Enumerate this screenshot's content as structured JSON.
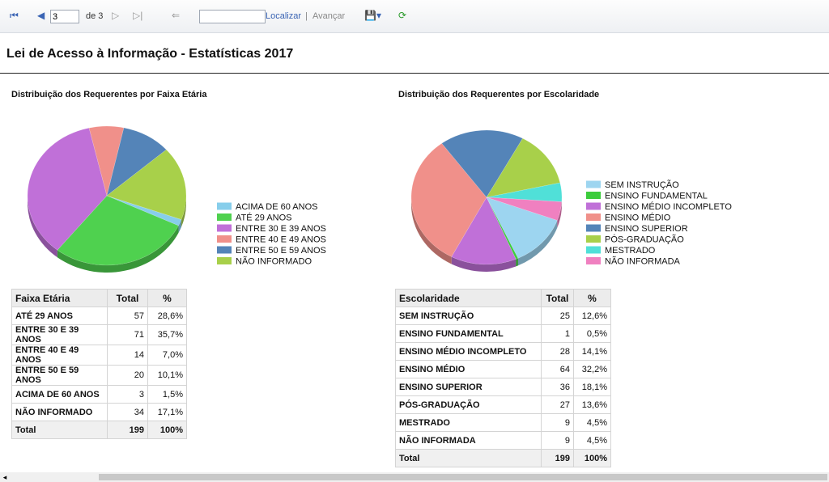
{
  "toolbar": {
    "page_input": "3",
    "page_count": "de 3",
    "find": "Localizar",
    "next": "Avançar"
  },
  "title": "Lei de Acesso à Informação - Estatísticas 2017",
  "chart_data": [
    {
      "type": "pie",
      "title": "Distribuição dos Requerentes por Faixa Etária",
      "categories": [
        "ACIMA DE 60 ANOS",
        "ATÉ 29 ANOS",
        "ENTRE 30 E 39 ANOS",
        "ENTRE 40 E 49 ANOS",
        "ENTRE 50 E 59 ANOS",
        "NÃO INFORMADO"
      ],
      "values": [
        3,
        57,
        71,
        14,
        20,
        34
      ],
      "colors": [
        "#87ceeb",
        "#4fd14f",
        "#c070d8",
        "#f0908a",
        "#5484b8",
        "#a8d04a"
      ]
    },
    {
      "type": "pie",
      "title": "Distribuição dos Requerentes por Escolaridade",
      "categories": [
        "SEM INSTRUÇÃO",
        "ENSINO FUNDAMENTAL",
        "ENSINO MÉDIO INCOMPLETO",
        "ENSINO MÉDIO",
        "ENSINO SUPERIOR",
        "PÓS-GRADUAÇÃO",
        "MESTRADO",
        "NÃO INFORMADA"
      ],
      "values": [
        25,
        1,
        28,
        64,
        36,
        27,
        9,
        9
      ],
      "colors": [
        "#9dd5f0",
        "#3ccc3c",
        "#c070d8",
        "#f0908a",
        "#5484b8",
        "#a8d04a",
        "#50e0d8",
        "#f080c0"
      ]
    }
  ],
  "tables": [
    {
      "header": [
        "Faixa Etária",
        "Total",
        "%"
      ],
      "rows": [
        [
          "ATÉ 29 ANOS",
          "57",
          "28,6%"
        ],
        [
          "ENTRE 30 E 39 ANOS",
          "71",
          "35,7%"
        ],
        [
          "ENTRE 40 E 49 ANOS",
          "14",
          "7,0%"
        ],
        [
          "ENTRE 50 E 59 ANOS",
          "20",
          "10,1%"
        ],
        [
          "ACIMA DE 60 ANOS",
          "3",
          "1,5%"
        ],
        [
          "NÃO INFORMADO",
          "34",
          "17,1%"
        ],
        [
          "Total",
          "199",
          "100%"
        ]
      ]
    },
    {
      "header": [
        "Escolaridade",
        "Total",
        "%"
      ],
      "rows": [
        [
          "SEM INSTRUÇÃO",
          "25",
          "12,6%"
        ],
        [
          "ENSINO FUNDAMENTAL",
          "1",
          "0,5%"
        ],
        [
          "ENSINO MÉDIO INCOMPLETO",
          "28",
          "14,1%"
        ],
        [
          "ENSINO MÉDIO",
          "64",
          "32,2%"
        ],
        [
          "ENSINO SUPERIOR",
          "36",
          "18,1%"
        ],
        [
          "PÓS-GRADUAÇÃO",
          "27",
          "13,6%"
        ],
        [
          "MESTRADO",
          "9",
          "4,5%"
        ],
        [
          "NÃO INFORMADA",
          "9",
          "4,5%"
        ],
        [
          "Total",
          "199",
          "100%"
        ]
      ]
    }
  ]
}
